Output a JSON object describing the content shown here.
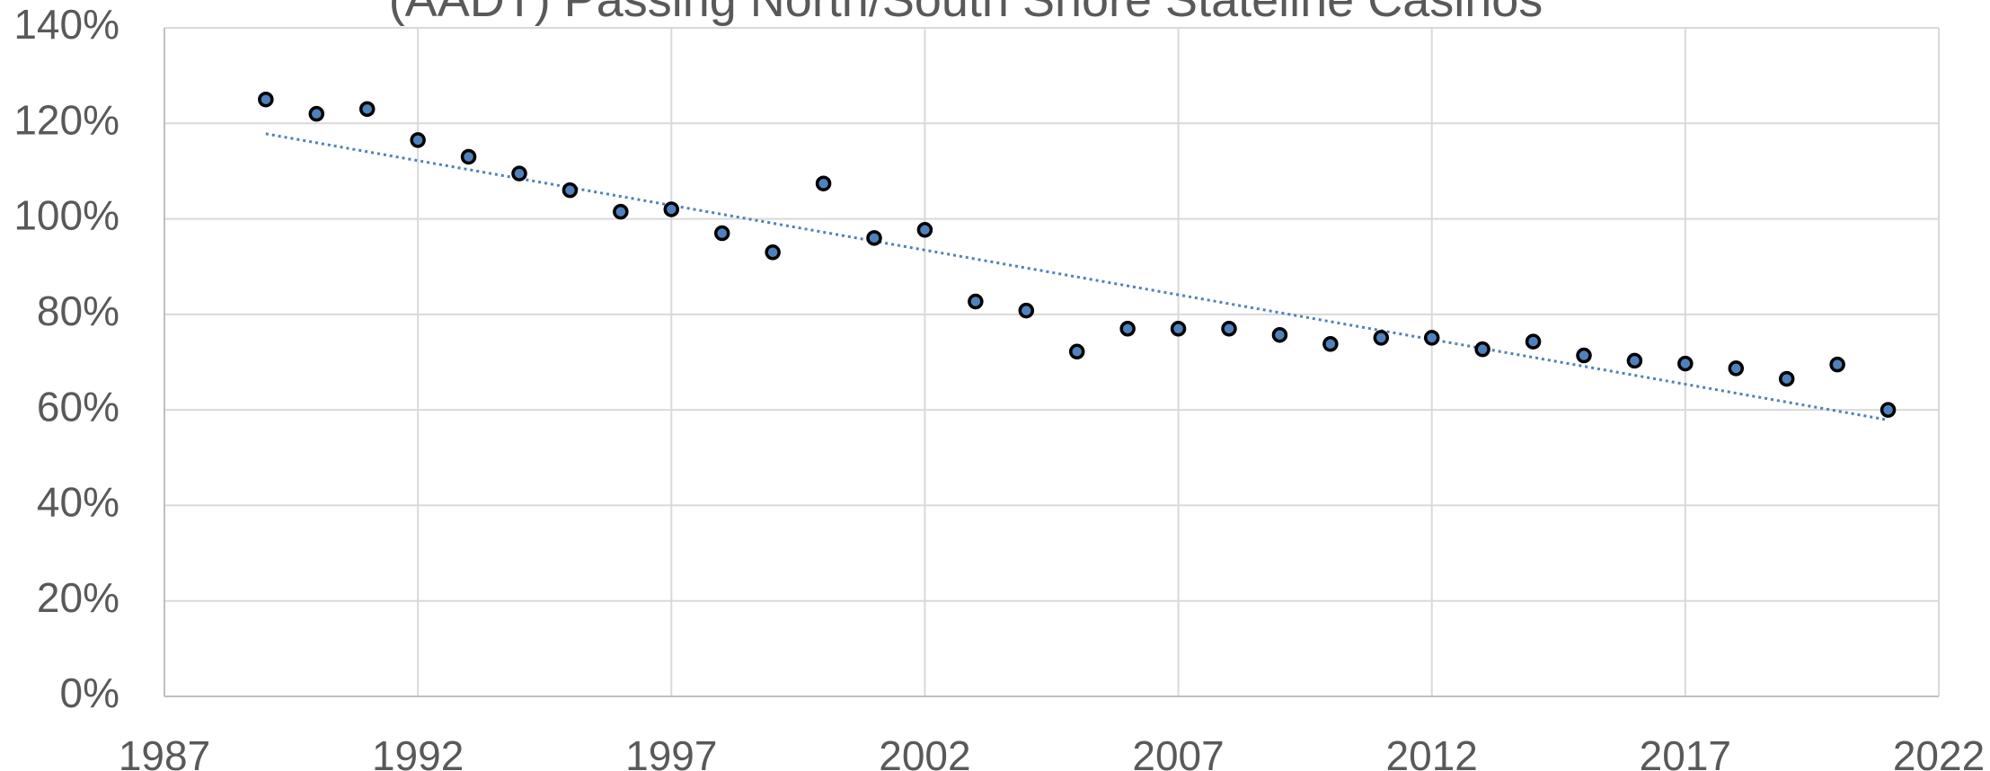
{
  "chart_data": {
    "type": "scatter",
    "title": "(AADT) Passing North/South Shore Stateline Casinos",
    "series": [
      {
        "color": "#4f81bd",
        "x": [
          1989,
          1990,
          1991,
          1992,
          1993,
          1994,
          1995,
          1996,
          1997,
          1998,
          1999,
          2000,
          2001,
          2002,
          2003,
          2004,
          2005,
          2006,
          2007,
          2008,
          2009,
          2010,
          2011,
          2012,
          2013,
          2014,
          2015,
          2016,
          2017,
          2018,
          2019,
          2020,
          2021
        ],
        "values": [
          125,
          122,
          123,
          116.5,
          113,
          109.5,
          106,
          101.5,
          102,
          97,
          93,
          107.4,
          96,
          97.7,
          82.7,
          80.8,
          72.2,
          77,
          77,
          77,
          75.7,
          73.8,
          75.1,
          75.1,
          72.7,
          74.3,
          71.4,
          70.3,
          69.7,
          68.7,
          66.5,
          69.5,
          60
        ]
      }
    ],
    "trendline": "linear",
    "xlim": [
      1987,
      2022
    ],
    "xticks": [
      1987,
      1992,
      1997,
      2002,
      2007,
      2012,
      2017,
      2022
    ],
    "ylim": [
      0,
      140
    ],
    "yticks": [
      {
        "value": 0,
        "label": "0%"
      },
      {
        "value": 20,
        "label": "20%"
      },
      {
        "value": 40,
        "label": "40%"
      },
      {
        "value": 60,
        "label": "60%"
      },
      {
        "value": 80,
        "label": "80%"
      },
      {
        "value": 100,
        "label": "100%"
      },
      {
        "value": 120,
        "label": "120%"
      },
      {
        "value": 140,
        "label": "140%"
      }
    ],
    "grid": true
  }
}
